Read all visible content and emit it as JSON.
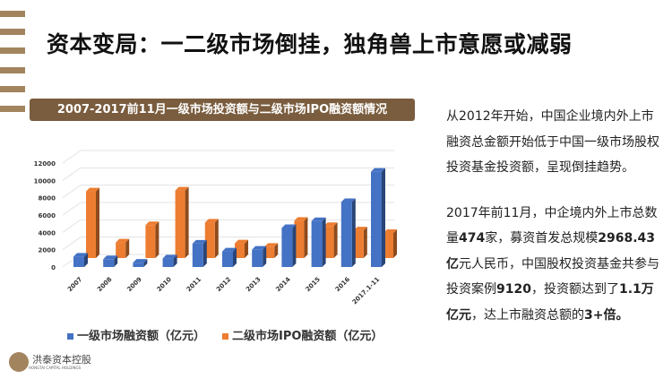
{
  "slide": {
    "title": "资本变局：一二级市场倒挂，独角兽上市意愿或减弱",
    "chart_header": "2007-2017前11月一级市场投资额与二级市场IPO融资额情况",
    "side_text": {
      "p1": "从2012年开始，中国企业境内外上市融资总金额开始低于中国一级市场股权投资基金投资额，呈现倒挂趋势。",
      "p2_parts": [
        "2017年前11月，中企境内外上市总数量",
        "474",
        "家，募资首发总规模",
        "2968.43亿",
        "元人民币，中国股权投资基金共参与投资案例",
        "9120",
        "，投资额达到了",
        "1.1万亿元",
        "，达上市融资总额的",
        "3+倍。"
      ]
    },
    "logo": {
      "name": "洪泰资本控股",
      "sub": "HONGTAI CAPITAL HOLDINGS",
      "mark": "洪"
    }
  },
  "chart_data": {
    "type": "bar",
    "categories": [
      "2007",
      "2008",
      "2009",
      "2010",
      "2011",
      "2012",
      "2013",
      "2014",
      "2015",
      "2016",
      "2017.1-11"
    ],
    "series": [
      {
        "name": "一级市场融资额（亿元）",
        "color": "#4472c4",
        "values": [
          1200,
          900,
          500,
          1000,
          2700,
          1800,
          2000,
          4500,
          5300,
          7500,
          11000
        ]
      },
      {
        "name": "二级市场IPO融资额（亿元）",
        "color": "#ed7d31",
        "values": [
          7700,
          1800,
          3800,
          7800,
          4100,
          1700,
          1300,
          4300,
          3700,
          3200,
          2900
        ]
      }
    ],
    "yticks": [
      "0",
      "2000",
      "4000",
      "6000",
      "8000",
      "10000",
      "12000"
    ],
    "ylim": [
      0,
      12000
    ],
    "grid": true,
    "legend": "bottom",
    "three_d": true
  }
}
